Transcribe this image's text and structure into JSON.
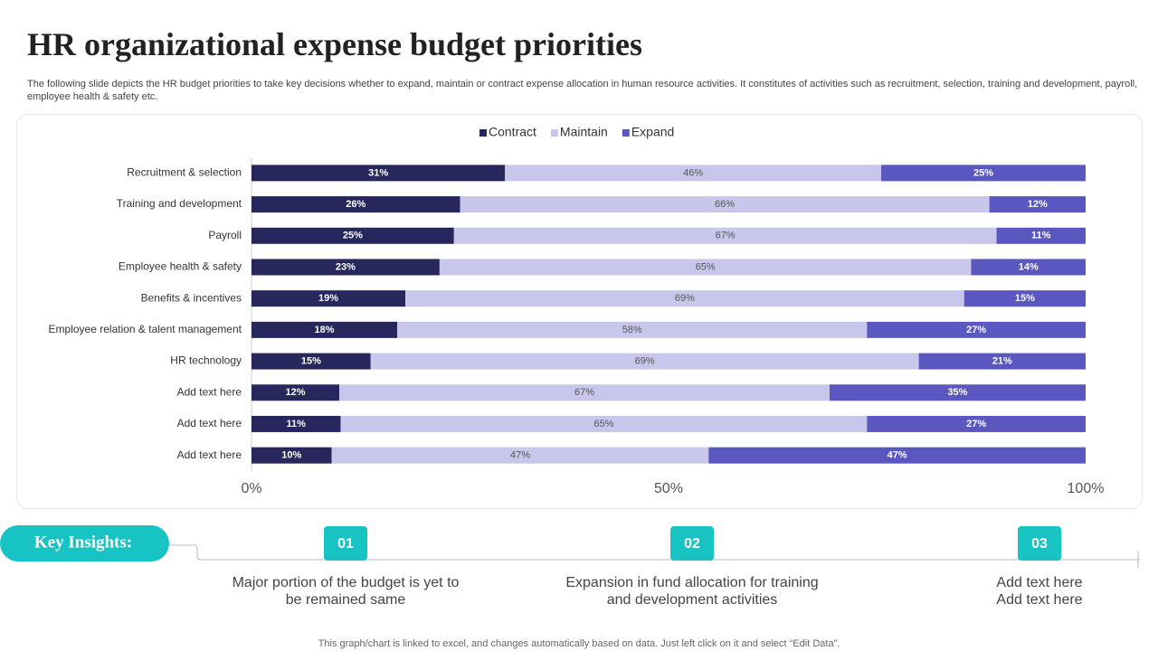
{
  "header": {
    "title": "HR organizational expense budget priorities",
    "subtitle": "The following slide depicts the HR budget priorities to take key decisions whether to expand, maintain or contract expense allocation in human resource activities. It constitutes of activities such as recruitment, selection, training and development, payroll, employee health & safety etc."
  },
  "chart_data": {
    "type": "bar",
    "orientation": "horizontal",
    "stacked": "percent",
    "categories": [
      "Recruitment & selection",
      "Training and development",
      "Payroll",
      "Employee health & safety",
      "Benefits & incentives",
      "Employee relation & talent management",
      "HR technology",
      "Add text here",
      "Add text here",
      "Add text here"
    ],
    "series": [
      {
        "name": "Contract",
        "color": "#27275e",
        "values": [
          31,
          26,
          25,
          23,
          19,
          18,
          15,
          12,
          11,
          10
        ],
        "value_labels": [
          "31%",
          "26%",
          "25%",
          "23%",
          "19%",
          "18%",
          "15%",
          "12%",
          "11%",
          "10%"
        ]
      },
      {
        "name": "Maintain",
        "color": "#c8c6ea",
        "values": [
          46,
          66,
          67,
          65,
          69,
          58,
          69,
          67,
          65,
          47
        ],
        "value_labels": [
          "46%",
          "66%",
          "67%",
          "65%",
          "69%",
          "58%",
          "69%",
          "67%",
          "65%",
          "47%"
        ]
      },
      {
        "name": "Expand",
        "color": "#5b57c0",
        "values": [
          25,
          12,
          11,
          14,
          15,
          27,
          21,
          35,
          27,
          47
        ],
        "value_labels": [
          "25%",
          "12%",
          "11%",
          "14%",
          "15%",
          "27%",
          "21%",
          "35%",
          "27%",
          "47%"
        ]
      }
    ],
    "xlim": [
      0,
      100
    ],
    "xticks": [
      {
        "value": 0,
        "label": "0%"
      },
      {
        "value": 50,
        "label": "50%"
      },
      {
        "value": 100,
        "label": "100%"
      }
    ],
    "legend": "top"
  },
  "insights": {
    "label": "Key Insights:",
    "items": [
      {
        "number": "01",
        "lines": [
          "Major portion of the budget is yet to",
          "be remained same"
        ]
      },
      {
        "number": "02",
        "lines": [
          "Expansion in fund allocation for training",
          "and development  activities"
        ]
      },
      {
        "number": "03",
        "lines": [
          "Add text here",
          "Add text here"
        ]
      }
    ]
  },
  "footer": "This graph/chart is linked to excel,  and changes automatically based on data. Just left click on it and select “Edit Data”."
}
